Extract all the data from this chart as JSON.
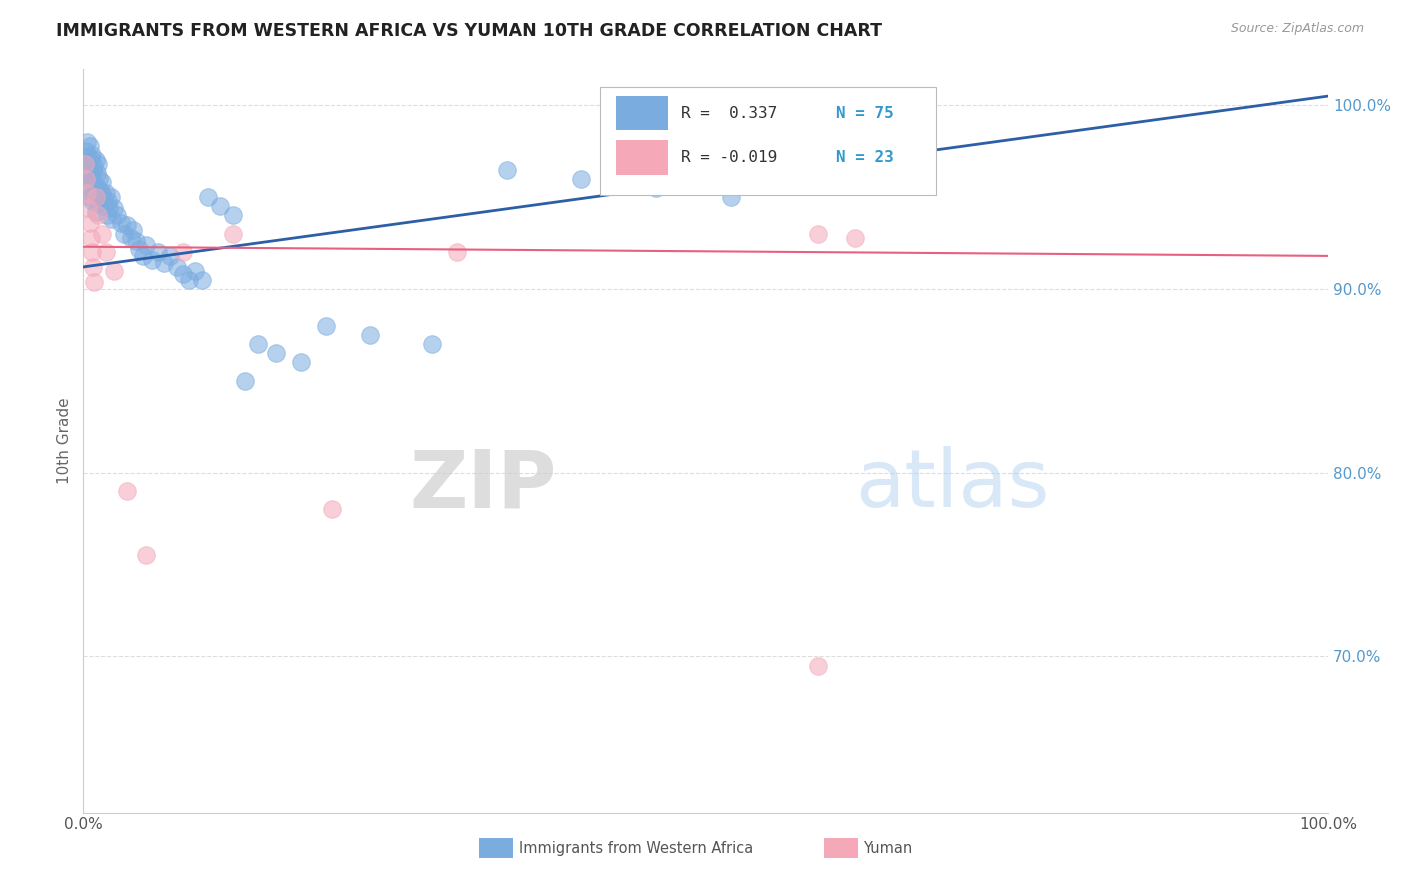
{
  "title": "IMMIGRANTS FROM WESTERN AFRICA VS YUMAN 10TH GRADE CORRELATION CHART",
  "source_text": "Source: ZipAtlas.com",
  "ylabel": "10th Grade",
  "xlim": [
    0.0,
    1.0
  ],
  "ylim": [
    0.615,
    1.02
  ],
  "xtick_positions": [
    0.0,
    0.2,
    0.4,
    0.6,
    0.8,
    1.0
  ],
  "xtick_labels": [
    "0.0%",
    "",
    "",
    "",
    "",
    "100.0%"
  ],
  "ytick_positions": [
    0.7,
    0.8,
    0.9,
    1.0
  ],
  "ytick_labels": [
    "70.0%",
    "80.0%",
    "90.0%",
    "100.0%"
  ],
  "legend_r_blue": "R =  0.337",
  "legend_n_blue": "N = 75",
  "legend_r_pink": "R = -0.019",
  "legend_n_pink": "N = 23",
  "blue_color": "#7aace0",
  "pink_color": "#f4a8b8",
  "blue_line_color": "#2d5fa6",
  "pink_line_color": "#e86080",
  "watermark_zip": "ZIP",
  "watermark_atlas": "atlas",
  "bg_color": "#FFFFFF",
  "grid_color": "#DDDDDD",
  "blue_points_x": [
    0.001,
    0.002,
    0.002,
    0.003,
    0.003,
    0.003,
    0.004,
    0.004,
    0.005,
    0.005,
    0.005,
    0.006,
    0.006,
    0.007,
    0.007,
    0.007,
    0.008,
    0.008,
    0.009,
    0.009,
    0.01,
    0.01,
    0.01,
    0.011,
    0.012,
    0.012,
    0.013,
    0.013,
    0.014,
    0.015,
    0.015,
    0.016,
    0.017,
    0.018,
    0.019,
    0.02,
    0.021,
    0.022,
    0.023,
    0.025,
    0.027,
    0.03,
    0.033,
    0.035,
    0.038,
    0.04,
    0.042,
    0.045,
    0.048,
    0.05,
    0.055,
    0.06,
    0.065,
    0.07,
    0.075,
    0.08,
    0.085,
    0.09,
    0.095,
    0.1,
    0.11,
    0.12,
    0.13,
    0.14,
    0.155,
    0.175,
    0.195,
    0.23,
    0.28,
    0.34,
    0.4,
    0.46,
    0.52,
    0.58,
    0.64
  ],
  "blue_points_y": [
    0.97,
    0.975,
    0.96,
    0.98,
    0.972,
    0.965,
    0.968,
    0.955,
    0.978,
    0.962,
    0.95,
    0.971,
    0.958,
    0.973,
    0.96,
    0.948,
    0.965,
    0.952,
    0.967,
    0.954,
    0.97,
    0.956,
    0.942,
    0.963,
    0.968,
    0.955,
    0.96,
    0.947,
    0.953,
    0.958,
    0.945,
    0.95,
    0.946,
    0.952,
    0.94,
    0.948,
    0.944,
    0.95,
    0.938,
    0.944,
    0.94,
    0.936,
    0.93,
    0.935,
    0.928,
    0.932,
    0.926,
    0.922,
    0.918,
    0.924,
    0.916,
    0.92,
    0.914,
    0.918,
    0.912,
    0.908,
    0.905,
    0.91,
    0.905,
    0.95,
    0.945,
    0.94,
    0.85,
    0.87,
    0.865,
    0.86,
    0.88,
    0.875,
    0.87,
    0.965,
    0.96,
    0.955,
    0.95,
    0.975,
    0.97
  ],
  "pink_points_x": [
    0.001,
    0.002,
    0.003,
    0.004,
    0.005,
    0.006,
    0.007,
    0.008,
    0.009,
    0.01,
    0.012,
    0.015,
    0.018,
    0.025,
    0.035,
    0.05,
    0.08,
    0.12,
    0.2,
    0.3,
    0.59,
    0.62,
    0.59
  ],
  "pink_points_y": [
    0.968,
    0.96,
    0.952,
    0.944,
    0.936,
    0.928,
    0.92,
    0.912,
    0.904,
    0.95,
    0.94,
    0.93,
    0.92,
    0.91,
    0.79,
    0.755,
    0.92,
    0.93,
    0.78,
    0.92,
    0.93,
    0.928,
    0.695
  ],
  "blue_trend_x0": 0.0,
  "blue_trend_y0": 0.912,
  "blue_trend_x1": 1.0,
  "blue_trend_y1": 1.005,
  "pink_trend_x0": 0.0,
  "pink_trend_y0": 0.923,
  "pink_trend_x1": 1.0,
  "pink_trend_y1": 0.918
}
